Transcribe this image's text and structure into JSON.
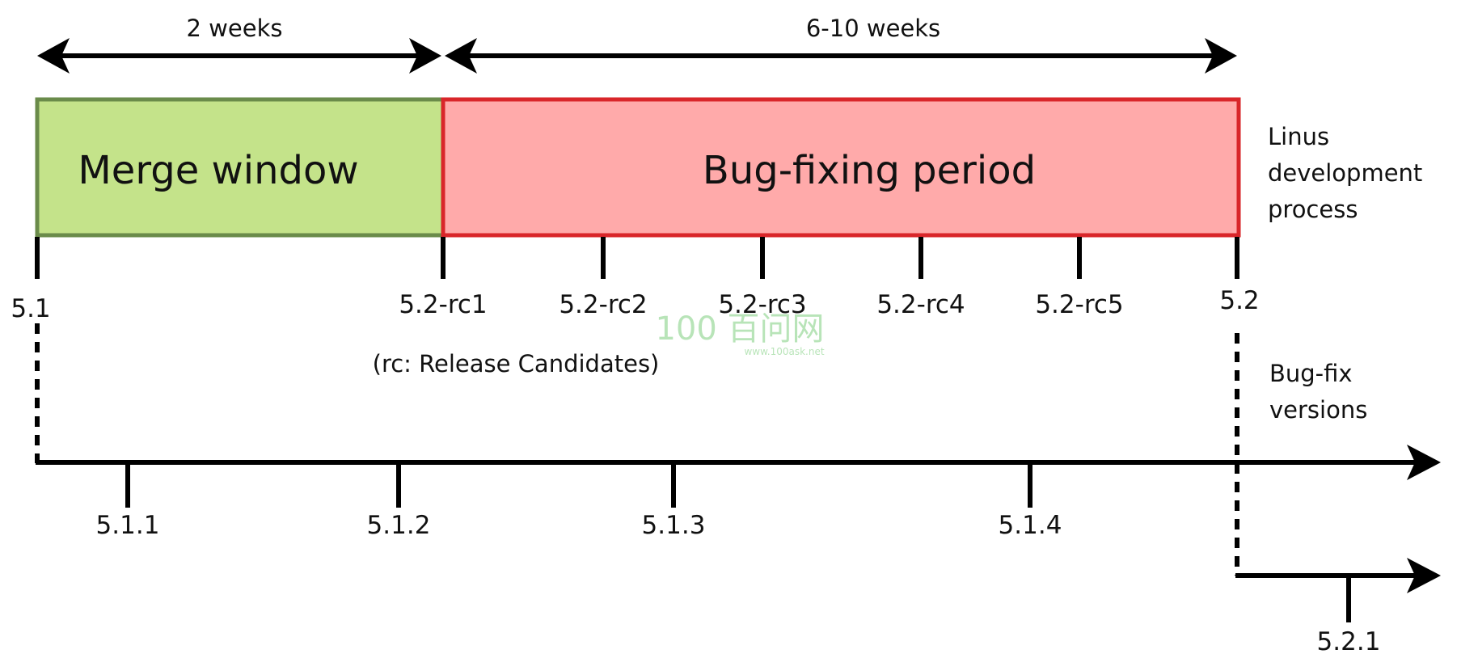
{
  "durations": {
    "merge": "2 weeks",
    "bugfix": "6-10 weeks"
  },
  "phases": {
    "merge": {
      "label": "Merge window",
      "fill": "#c4e38a",
      "stroke": "#6a8b4a"
    },
    "bugfix": {
      "label": "Bug-fixing period",
      "fill": "#ffaaaa",
      "stroke": "#d9262a"
    }
  },
  "side_labels": {
    "linus": [
      "Linus",
      "development",
      "process"
    ],
    "bugfix": [
      "Bug-fix",
      "versions"
    ]
  },
  "releases": [
    "5.1",
    "5.2-rc1",
    "5.2-rc2",
    "5.2-rc3",
    "5.2-rc4",
    "5.2-rc5",
    "5.2"
  ],
  "note": "(rc: Release Candidates)",
  "bugfix_51": [
    "5.1.1",
    "5.1.2",
    "5.1.3",
    "5.1.4"
  ],
  "bugfix_52": [
    "5.2.1"
  ],
  "watermark": {
    "text": "100 百问网",
    "url": "www.100ask.net",
    "color": "#7fcf7f"
  }
}
